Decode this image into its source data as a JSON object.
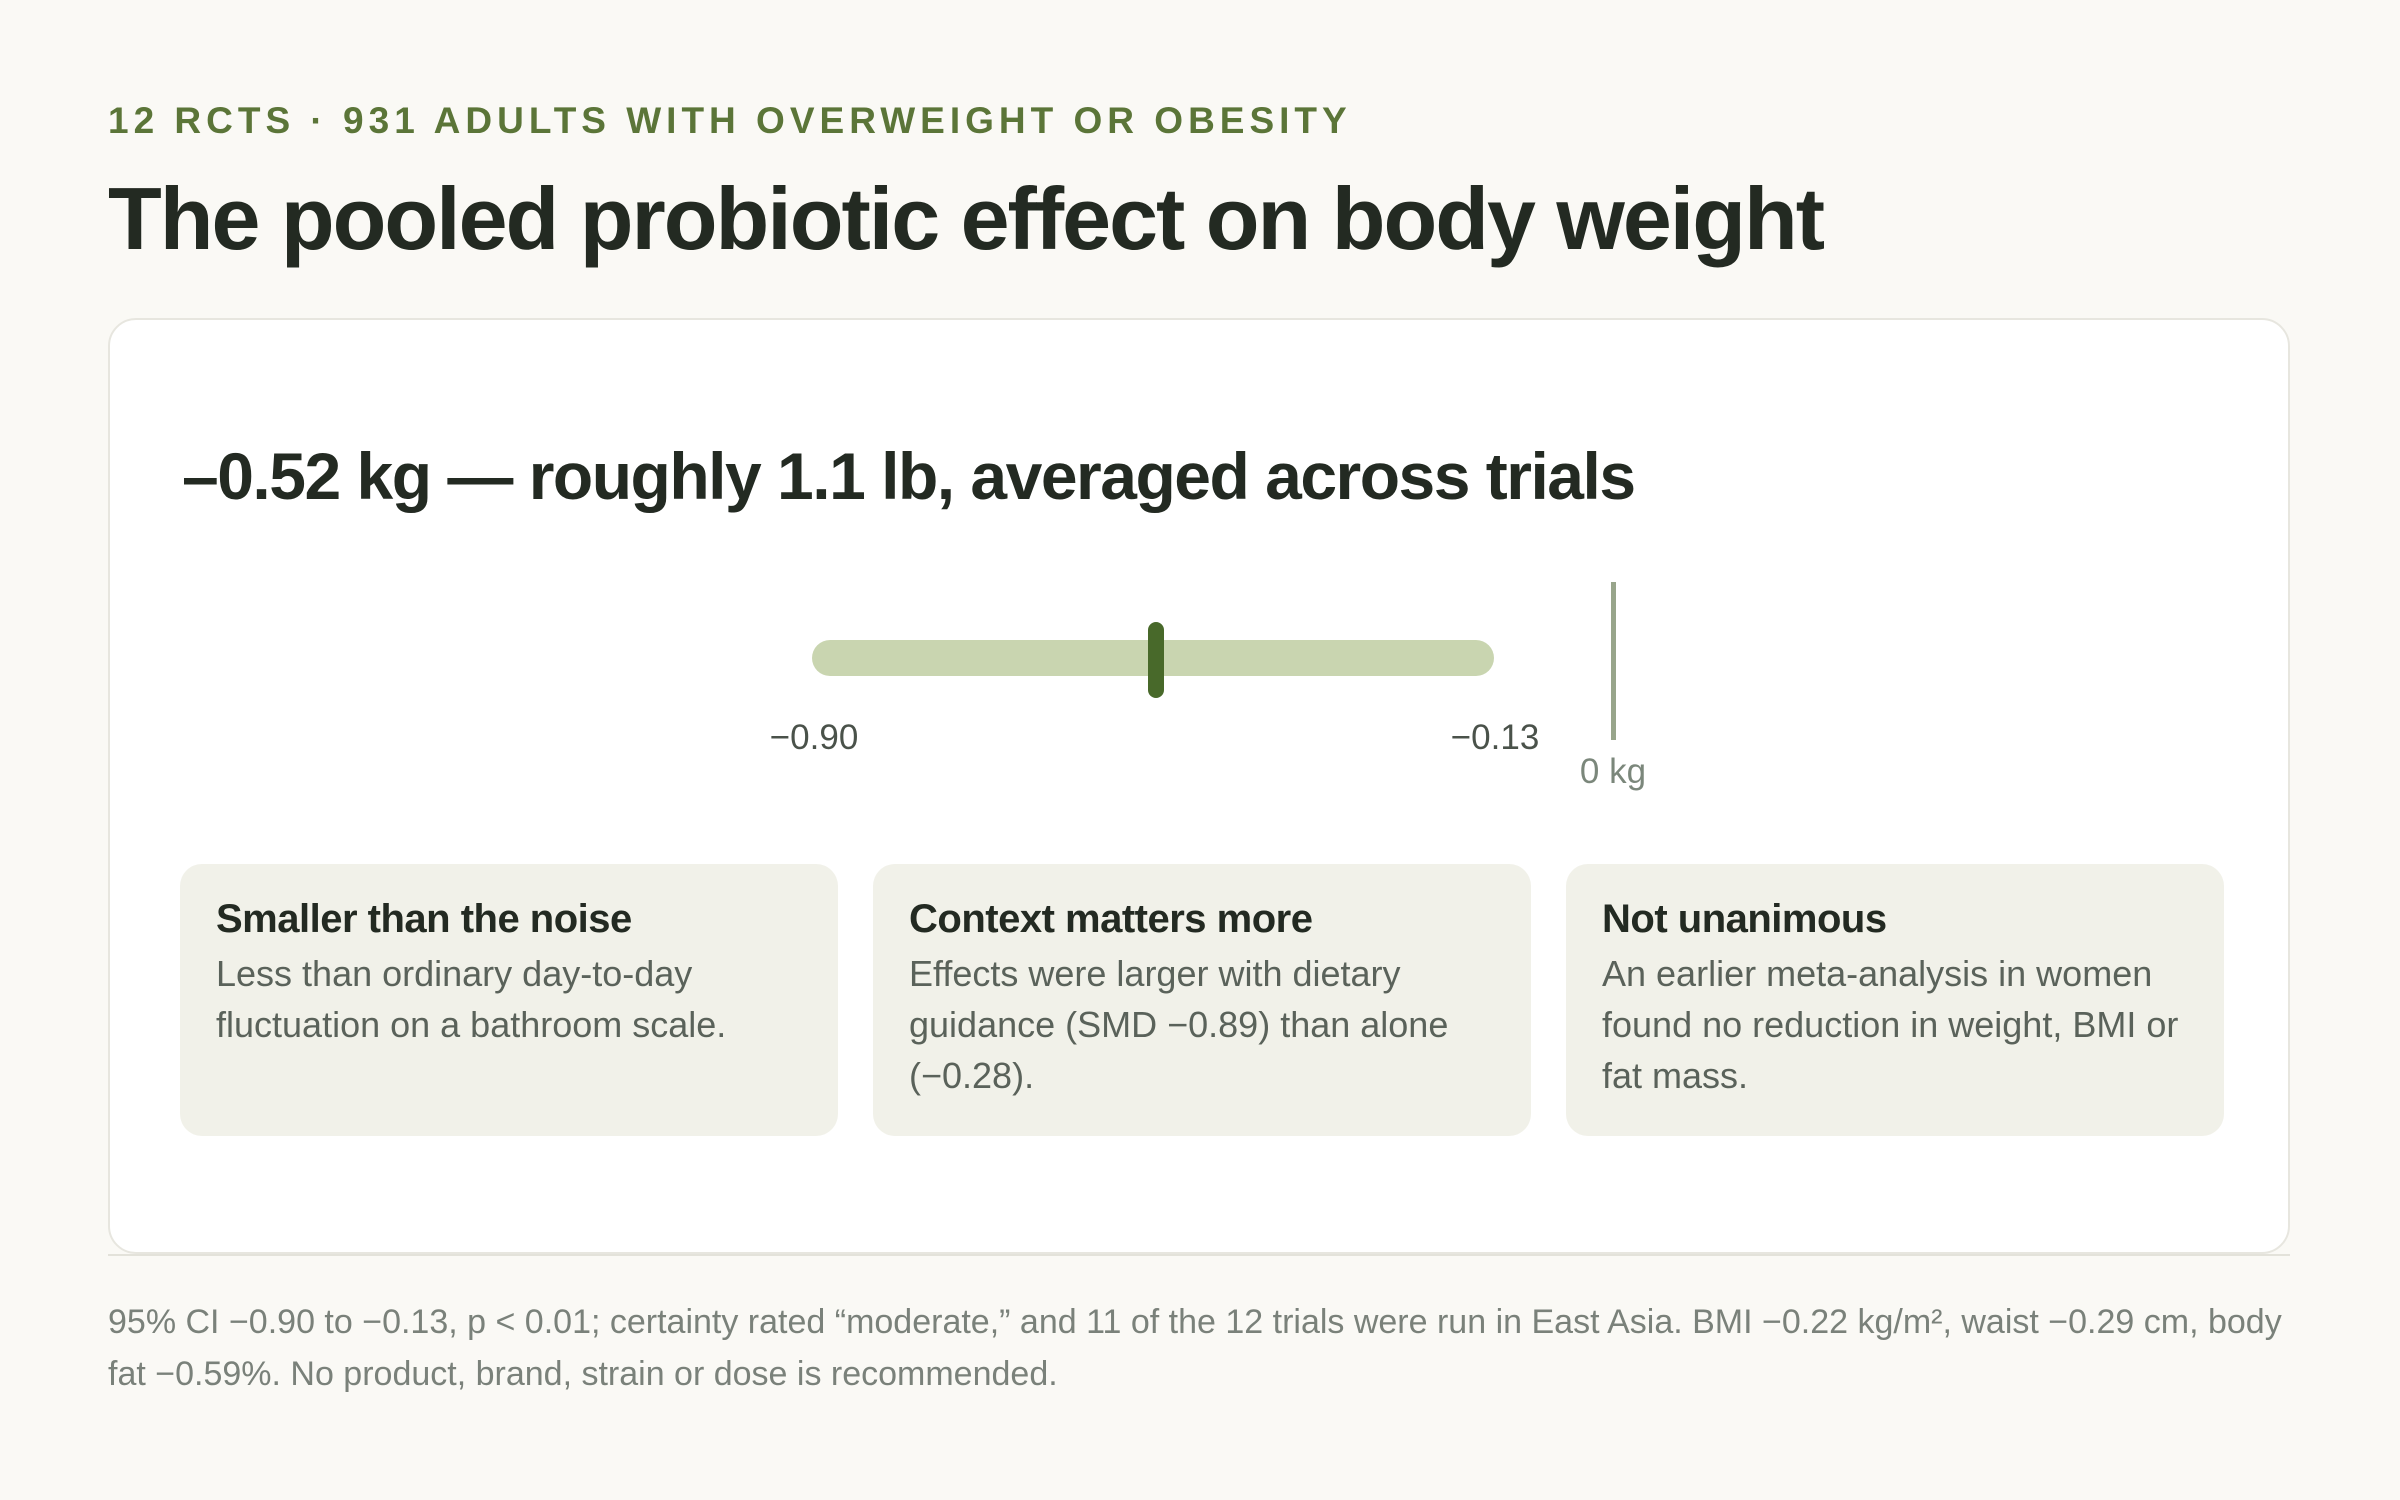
{
  "header": {
    "eyebrow": "12 RCTS · 931 ADULTS WITH OVERWEIGHT OR OBESITY",
    "title": "The pooled probiotic effect on body weight"
  },
  "card": {
    "headline": "–0.52 kg — roughly 1.1 lb, averaged across trials",
    "estimate": {
      "point_kg": -0.52,
      "ci_low_kg": -0.9,
      "ci_high_kg": -0.13,
      "ci_low_label": "−0.90",
      "ci_high_label": "−0.13",
      "zero_label": "0 kg"
    },
    "panels": [
      {
        "title": "Smaller than the noise",
        "body": "Less than ordinary day-to-day fluctuation on a bathroom scale."
      },
      {
        "title": "Context matters more",
        "body": "Effects were larger with dietary guidance (SMD −0.89) than alone (−0.28)."
      },
      {
        "title": "Not unanimous",
        "body": "An earlier meta-analysis in women found no reduction in weight, BMI or fat mass."
      }
    ]
  },
  "footnote": "95% CI −0.90 to −0.13, p < 0.01; certainty rated “moderate,” and 11 of the 12 trials were run in East Asia. BMI −0.22 kg/m², waist −0.29 cm, body fat −0.59%. No product, brand, strain or dose is recommended.",
  "colors": {
    "accent": "#5b7538",
    "ci_track": "#c9d5b0",
    "point_marker": "#48692a",
    "zero_line": "#98a58b",
    "background": "#faf9f5",
    "panel": "#f1f1e9"
  }
}
